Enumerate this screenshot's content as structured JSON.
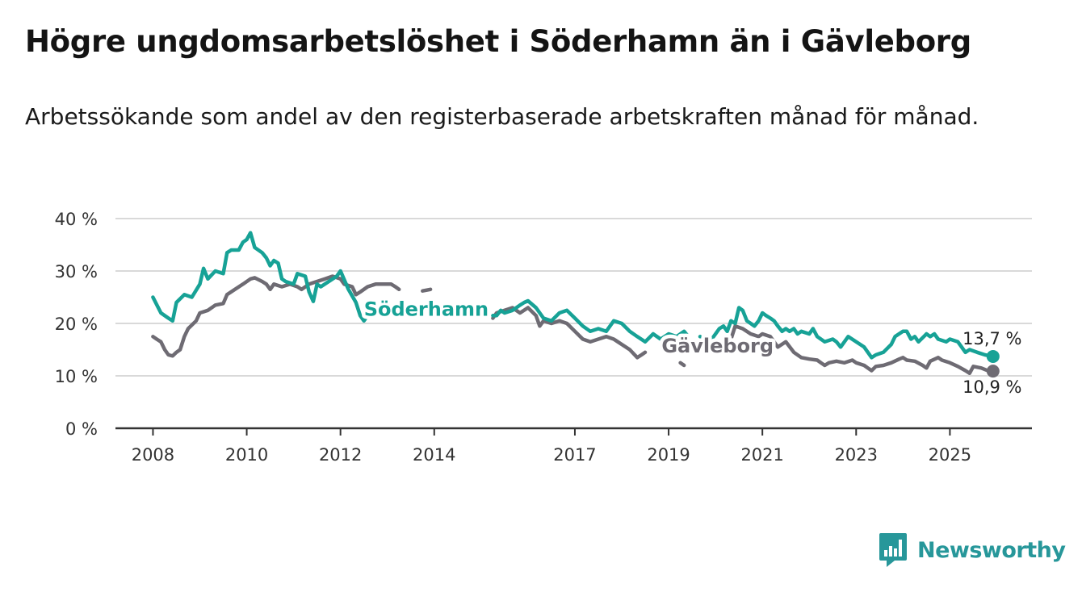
{
  "title": "Högre ungdomsarbetslöshet i Söderhamn än i Gävleborg",
  "subtitle": "Arbetssökande som andel av den registerbaserade arbetskraften månad för månad.",
  "brand": {
    "name": "Newsworthy",
    "logo_icon": "chart-bar-icon"
  },
  "colors": {
    "soderhamn": "#17a296",
    "gavleborg": "#6e6b73",
    "grid": "#d9d9d9",
    "axis": "#333333",
    "brand": "#27979a"
  },
  "chart_data": {
    "type": "line",
    "title": "Högre ungdomsarbetslöshet i Söderhamn än i Gävleborg",
    "xlabel": "",
    "ylabel": "",
    "xlim": [
      2007.2,
      2026.75
    ],
    "ylim": [
      0,
      40
    ],
    "y_ticks": [
      {
        "value": 0,
        "label": "0 %"
      },
      {
        "value": 10,
        "label": "10 %"
      },
      {
        "value": 20,
        "label": "20 %"
      },
      {
        "value": 30,
        "label": "30 %"
      },
      {
        "value": 40,
        "label": "40 %"
      }
    ],
    "x_ticks": [
      {
        "value": 2008,
        "label": "2008"
      },
      {
        "value": 2010,
        "label": "2010"
      },
      {
        "value": 2012,
        "label": "2012"
      },
      {
        "value": 2014,
        "label": "2014"
      },
      {
        "value": 2017,
        "label": "2017"
      },
      {
        "value": 2019,
        "label": "2019"
      },
      {
        "value": 2021,
        "label": "2021"
      },
      {
        "value": 2023,
        "label": "2023"
      },
      {
        "value": 2025,
        "label": "2025"
      }
    ],
    "grid": true,
    "series": [
      {
        "name": "Söderhamn",
        "key": "soderhamn",
        "label_at": {
          "x": 2012.5,
          "y": 21.5
        },
        "segments": [
          [
            [
              2008.0,
              25.0
            ],
            [
              2008.17,
              22.0
            ],
            [
              2008.33,
              21.0
            ],
            [
              2008.42,
              20.5
            ],
            [
              2008.5,
              24.0
            ],
            [
              2008.67,
              25.5
            ],
            [
              2008.83,
              25.0
            ],
            [
              2009.0,
              27.5
            ],
            [
              2009.08,
              30.5
            ],
            [
              2009.17,
              28.5
            ],
            [
              2009.33,
              30.0
            ],
            [
              2009.5,
              29.5
            ],
            [
              2009.58,
              33.5
            ],
            [
              2009.67,
              34.0
            ],
            [
              2009.83,
              34.0
            ],
            [
              2009.92,
              35.5
            ],
            [
              2010.0,
              36.0
            ],
            [
              2010.08,
              37.3
            ],
            [
              2010.17,
              34.5
            ],
            [
              2010.33,
              33.5
            ],
            [
              2010.42,
              32.5
            ],
            [
              2010.5,
              31.0
            ],
            [
              2010.58,
              32.0
            ],
            [
              2010.67,
              31.5
            ],
            [
              2010.75,
              28.5
            ],
            [
              2010.83,
              28.0
            ],
            [
              2011.0,
              27.5
            ],
            [
              2011.08,
              29.5
            ],
            [
              2011.25,
              29.0
            ],
            [
              2011.33,
              26.0
            ],
            [
              2011.42,
              24.2
            ],
            [
              2011.5,
              27.5
            ],
            [
              2011.58,
              27.0
            ],
            [
              2011.75,
              28.0
            ],
            [
              2011.92,
              29.0
            ],
            [
              2012.0,
              30.0
            ],
            [
              2012.17,
              26.5
            ],
            [
              2012.33,
              24.0
            ],
            [
              2012.42,
              21.5
            ],
            [
              2012.5,
              20.5
            ],
            [
              2012.58,
              21.5
            ]
          ],
          [
            [
              2015.25,
              21.5
            ],
            [
              2015.33,
              21.5
            ],
            [
              2015.42,
              22.5
            ],
            [
              2015.5,
              22.0
            ],
            [
              2015.67,
              22.5
            ],
            [
              2015.83,
              23.5
            ],
            [
              2015.92,
              24.0
            ],
            [
              2016.0,
              24.3
            ],
            [
              2016.17,
              23.0
            ],
            [
              2016.33,
              21.0
            ],
            [
              2016.5,
              20.5
            ],
            [
              2016.67,
              22.0
            ],
            [
              2016.83,
              22.5
            ],
            [
              2017.0,
              21.0
            ],
            [
              2017.17,
              19.5
            ],
            [
              2017.33,
              18.5
            ],
            [
              2017.5,
              19.0
            ],
            [
              2017.67,
              18.5
            ],
            [
              2017.83,
              20.5
            ],
            [
              2018.0,
              20.0
            ],
            [
              2018.17,
              18.5
            ],
            [
              2018.33,
              17.5
            ],
            [
              2018.5,
              16.5
            ],
            [
              2018.67,
              18.0
            ],
            [
              2018.83,
              17.0
            ],
            [
              2019.0,
              18.0
            ],
            [
              2019.17,
              17.5
            ],
            [
              2019.33,
              18.5
            ],
            [
              2019.42,
              17.5
            ]
          ],
          [
            [
              2019.67,
              17.5
            ],
            [
              2019.75,
              17.0
            ]
          ],
          [
            [
              2019.92,
              17.0
            ],
            [
              2020.08,
              19.0
            ],
            [
              2020.17,
              19.5
            ],
            [
              2020.25,
              18.5
            ],
            [
              2020.33,
              20.5
            ],
            [
              2020.42,
              20.0
            ],
            [
              2020.5,
              23.0
            ],
            [
              2020.58,
              22.5
            ],
            [
              2020.67,
              20.5
            ],
            [
              2020.75,
              20.0
            ],
            [
              2020.83,
              19.5
            ],
            [
              2020.92,
              20.5
            ],
            [
              2021.0,
              22.0
            ],
            [
              2021.08,
              21.5
            ],
            [
              2021.17,
              21.0
            ],
            [
              2021.25,
              20.5
            ],
            [
              2021.33,
              19.5
            ],
            [
              2021.42,
              18.5
            ],
            [
              2021.5,
              19.0
            ],
            [
              2021.58,
              18.5
            ],
            [
              2021.67,
              19.0
            ],
            [
              2021.75,
              18.0
            ],
            [
              2021.83,
              18.5
            ],
            [
              2022.0,
              18.0
            ],
            [
              2022.08,
              19.0
            ],
            [
              2022.17,
              17.5
            ],
            [
              2022.33,
              16.5
            ],
            [
              2022.5,
              17.0
            ],
            [
              2022.58,
              16.5
            ],
            [
              2022.67,
              15.5
            ],
            [
              2022.83,
              17.5
            ],
            [
              2023.0,
              16.5
            ],
            [
              2023.17,
              15.5
            ],
            [
              2023.33,
              13.5
            ],
            [
              2023.42,
              14.0
            ],
            [
              2023.58,
              14.5
            ],
            [
              2023.75,
              16.0
            ],
            [
              2023.83,
              17.5
            ],
            [
              2024.0,
              18.5
            ],
            [
              2024.08,
              18.5
            ],
            [
              2024.17,
              17.0
            ],
            [
              2024.25,
              17.5
            ],
            [
              2024.33,
              16.5
            ],
            [
              2024.5,
              18.0
            ],
            [
              2024.58,
              17.5
            ],
            [
              2024.67,
              18.0
            ],
            [
              2024.75,
              17.0
            ],
            [
              2024.92,
              16.5
            ],
            [
              2025.0,
              17.0
            ],
            [
              2025.17,
              16.5
            ],
            [
              2025.33,
              14.5
            ],
            [
              2025.42,
              15.0
            ],
            [
              2025.58,
              14.5
            ],
            [
              2025.75,
              14.0
            ],
            [
              2025.92,
              13.7
            ]
          ]
        ],
        "last_value_label": "13,7 %",
        "last_point": [
          2025.92,
          13.7
        ]
      },
      {
        "name": "Gävleborg",
        "key": "gavleborg",
        "label_at": {
          "x": 2018.85,
          "y": 14.5
        },
        "segments": [
          [
            [
              2008.0,
              17.5
            ],
            [
              2008.08,
              17.0
            ],
            [
              2008.17,
              16.5
            ],
            [
              2008.25,
              15.0
            ],
            [
              2008.33,
              14.0
            ],
            [
              2008.42,
              13.8
            ],
            [
              2008.5,
              14.5
            ],
            [
              2008.58,
              15.0
            ],
            [
              2008.67,
              17.5
            ],
            [
              2008.75,
              19.0
            ],
            [
              2008.92,
              20.5
            ],
            [
              2009.0,
              22.0
            ],
            [
              2009.17,
              22.5
            ],
            [
              2009.33,
              23.5
            ],
            [
              2009.5,
              23.8
            ],
            [
              2009.58,
              25.5
            ],
            [
              2009.75,
              26.5
            ],
            [
              2009.92,
              27.5
            ],
            [
              2010.08,
              28.5
            ],
            [
              2010.17,
              28.7
            ],
            [
              2010.33,
              28.0
            ],
            [
              2010.42,
              27.5
            ],
            [
              2010.5,
              26.5
            ],
            [
              2010.58,
              27.5
            ],
            [
              2010.75,
              27.0
            ],
            [
              2010.92,
              27.5
            ],
            [
              2011.08,
              27.0
            ],
            [
              2011.17,
              26.5
            ],
            [
              2011.33,
              27.5
            ],
            [
              2011.5,
              28.0
            ],
            [
              2011.67,
              28.5
            ],
            [
              2011.83,
              29.0
            ],
            [
              2012.0,
              28.5
            ],
            [
              2012.08,
              27.5
            ],
            [
              2012.25,
              27.0
            ],
            [
              2012.33,
              25.5
            ],
            [
              2012.42,
              26.0
            ],
            [
              2012.58,
              27.0
            ],
            [
              2012.75,
              27.5
            ],
            [
              2012.92,
              27.5
            ],
            [
              2013.08,
              27.5
            ],
            [
              2013.17,
              27.0
            ],
            [
              2013.25,
              26.5
            ]
          ],
          [
            [
              2013.75,
              26.2
            ],
            [
              2013.92,
              26.5
            ]
          ],
          [
            [
              2015.25,
              21.0
            ],
            [
              2015.33,
              22.0
            ],
            [
              2015.5,
              22.5
            ],
            [
              2015.67,
              23.0
            ],
            [
              2015.83,
              22.0
            ],
            [
              2016.0,
              23.0
            ],
            [
              2016.17,
              21.5
            ],
            [
              2016.25,
              19.5
            ],
            [
              2016.33,
              20.5
            ],
            [
              2016.5,
              20.0
            ],
            [
              2016.67,
              20.5
            ],
            [
              2016.83,
              20.0
            ],
            [
              2017.0,
              18.5
            ],
            [
              2017.17,
              17.0
            ],
            [
              2017.33,
              16.5
            ],
            [
              2017.5,
              17.0
            ],
            [
              2017.67,
              17.5
            ],
            [
              2017.83,
              17.0
            ],
            [
              2018.0,
              16.0
            ],
            [
              2018.17,
              15.0
            ],
            [
              2018.33,
              13.5
            ],
            [
              2018.42,
              14.0
            ],
            [
              2018.5,
              14.5
            ]
          ],
          [
            [
              2019.25,
              12.5
            ],
            [
              2019.33,
              12.0
            ]
          ],
          [
            [
              2020.33,
              17.0
            ],
            [
              2020.42,
              19.5
            ],
            [
              2020.58,
              19.0
            ],
            [
              2020.75,
              18.0
            ],
            [
              2020.92,
              17.5
            ],
            [
              2021.0,
              18.0
            ],
            [
              2021.17,
              17.5
            ],
            [
              2021.25,
              16.5
            ],
            [
              2021.33,
              15.5
            ],
            [
              2021.5,
              16.5
            ],
            [
              2021.67,
              14.5
            ],
            [
              2021.83,
              13.5
            ],
            [
              2022.0,
              13.2
            ],
            [
              2022.17,
              13.0
            ],
            [
              2022.25,
              12.5
            ],
            [
              2022.33,
              12.0
            ],
            [
              2022.42,
              12.5
            ],
            [
              2022.58,
              12.8
            ],
            [
              2022.75,
              12.5
            ],
            [
              2022.92,
              13.0
            ],
            [
              2023.0,
              12.5
            ],
            [
              2023.17,
              12.0
            ],
            [
              2023.25,
              11.5
            ],
            [
              2023.33,
              11.0
            ],
            [
              2023.42,
              11.8
            ],
            [
              2023.58,
              12.0
            ],
            [
              2023.75,
              12.5
            ],
            [
              2023.92,
              13.2
            ],
            [
              2024.0,
              13.5
            ],
            [
              2024.08,
              13.0
            ],
            [
              2024.25,
              12.8
            ],
            [
              2024.42,
              12.0
            ],
            [
              2024.5,
              11.5
            ],
            [
              2024.58,
              12.8
            ],
            [
              2024.75,
              13.5
            ],
            [
              2024.83,
              13.0
            ],
            [
              2025.0,
              12.5
            ],
            [
              2025.17,
              11.8
            ],
            [
              2025.33,
              11.0
            ],
            [
              2025.42,
              10.5
            ],
            [
              2025.5,
              11.8
            ],
            [
              2025.67,
              11.5
            ],
            [
              2025.83,
              10.9
            ],
            [
              2025.92,
              10.9
            ]
          ]
        ],
        "last_value_label": "10,9 %",
        "last_point": [
          2025.92,
          10.9
        ]
      }
    ]
  }
}
